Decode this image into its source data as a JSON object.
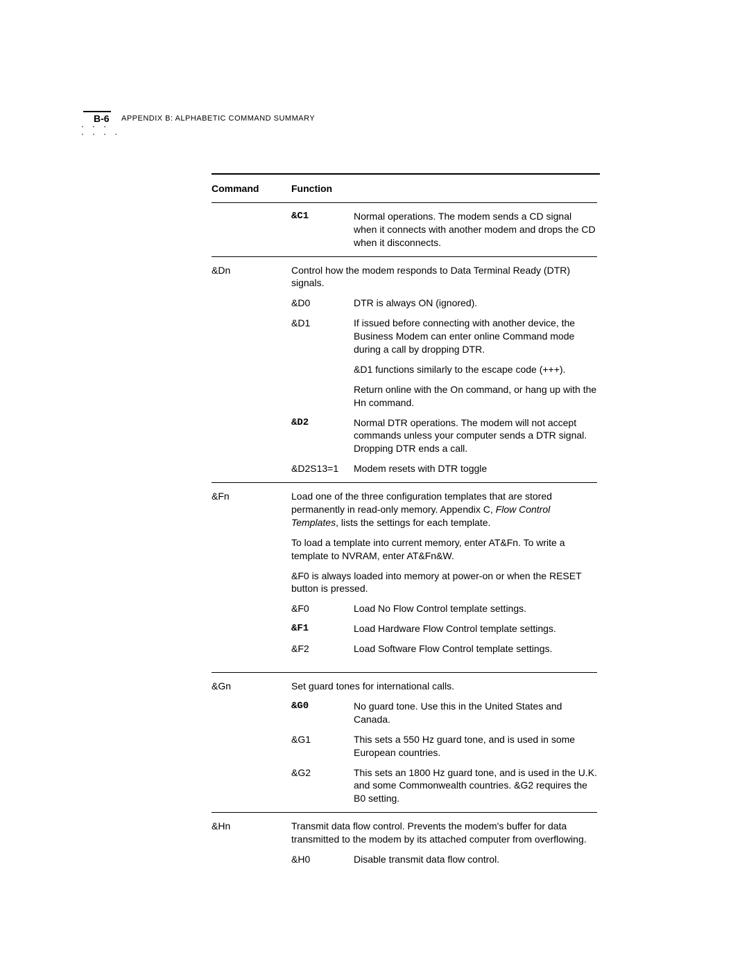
{
  "page_number": "B-6",
  "header": "APPENDIX B: ALPHABETIC COMMAND SUMMARY",
  "table": {
    "head_command": "Command",
    "head_function": "Function",
    "rows": [
      {
        "cmd": "",
        "sub": "&C1",
        "sub_mono": true,
        "desc": "Normal operations. The modem sends a CD signal when it connects with another modem and drops the CD when it disconnects."
      },
      {
        "sep": true
      },
      {
        "cmd": "&Dn",
        "span": true,
        "desc": "Control how the modem responds to Data Terminal Ready (DTR) signals."
      },
      {
        "cmd": "",
        "sub": "&D0",
        "desc": "DTR is always ON (ignored)."
      },
      {
        "cmd": "",
        "sub": "&D1",
        "desc": "If issued before connecting with another device, the Business Modem can enter online Command mode during a call by dropping DTR."
      },
      {
        "cmd": "",
        "sub": "",
        "desc": "&D1 functions similarly to the escape code (+++)."
      },
      {
        "cmd": "",
        "sub": "",
        "desc": "Return online with the On command, or hang up with the Hn command."
      },
      {
        "cmd": "",
        "sub": "&D2",
        "sub_mono": true,
        "desc": "Normal DTR operations. The modem will not accept commands unless your computer sends a DTR signal. Dropping DTR ends a call."
      },
      {
        "cmd": "",
        "sub": "&D2S13=1",
        "desc": "Modem resets with DTR toggle"
      },
      {
        "sep": true
      },
      {
        "cmd": "&Fn",
        "span": true,
        "desc_html": "Load one of the three configuration templates that are stored permanently in read-only memory. Appendix C, <span class=\"italic\">Flow Control Templates</span>, lists the settings for each template."
      },
      {
        "cmd": "",
        "span": true,
        "desc": "To load a template into current memory, enter AT&Fn. To write a template to NVRAM, enter AT&Fn&W."
      },
      {
        "cmd": "",
        "span": true,
        "desc": "&F0 is always loaded into memory at power-on or when the RESET button is pressed."
      },
      {
        "cmd": "",
        "sub": "&F0",
        "desc": "Load No Flow Control template settings."
      },
      {
        "cmd": "",
        "sub": "&F1",
        "sub_mono": true,
        "desc": "Load Hardware Flow Control template settings."
      },
      {
        "cmd": "",
        "sub": "&F2",
        "desc": "Load Software Flow Control template settings."
      },
      {
        "gap": true
      },
      {
        "sep": true
      },
      {
        "cmd": "&Gn",
        "span": true,
        "desc": "Set guard tones for international calls."
      },
      {
        "cmd": "",
        "sub": "&G0",
        "sub_mono": true,
        "desc": "No guard tone. Use this in the United States and Canada."
      },
      {
        "cmd": "",
        "sub": "&G1",
        "desc": "This sets a 550 Hz guard tone, and is used in some European countries."
      },
      {
        "cmd": "",
        "sub": "&G2",
        "desc": "This sets an 1800 Hz guard tone, and is used in the U.K. and some Commonwealth countries. &G2 requires the B0 setting."
      },
      {
        "sep": true
      },
      {
        "cmd": "&Hn",
        "span": true,
        "desc": "Transmit data flow control. Prevents the modem's buffer for data transmitted to the modem by its attached computer from overflowing."
      },
      {
        "cmd": "",
        "sub": "&H0",
        "desc": "Disable transmit data flow control."
      }
    ]
  }
}
